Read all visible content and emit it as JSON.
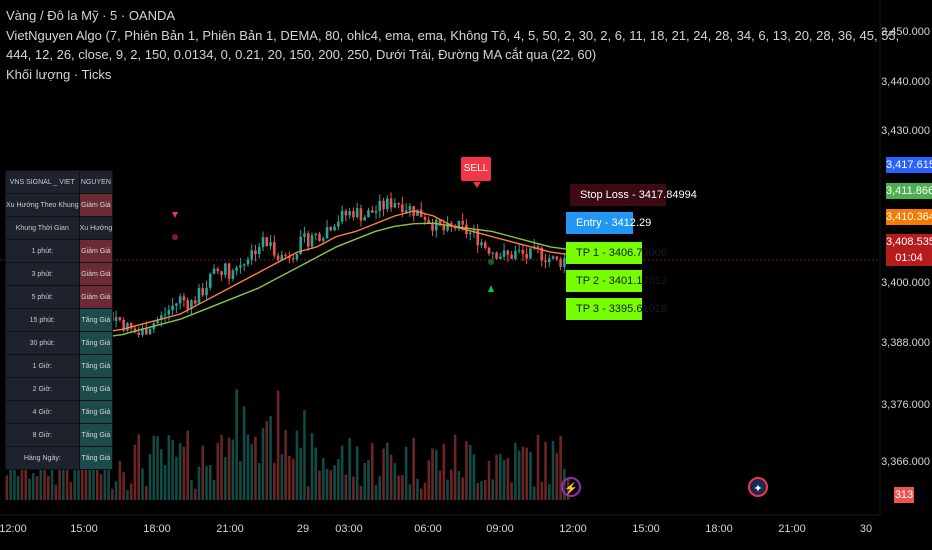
{
  "legend": {
    "line1": "Vàng / Đô la Mỹ · 5 · OANDA",
    "line2": "VietNguyen Algo (7, Phiên Bản 1, Phiên Bản 1, DEMA, 80, ohlc4, ema, ema, Không Tô, 4, 5, 50, 2, 30, 2, 6, 11, 18, 21, 24, 28, 34, 6, 13, 20, 28, 36, 45, 55, 444, 12, 26, close, 9, 2, 150, 0.0134, 0, 0.21, 20, 150, 200, 250, Dưới Trái, Đường MA cắt qua (22, 60)",
    "line3": "Khối lượng · Ticks"
  },
  "price_axis": [
    "3,450.000",
    "3,440.000",
    "3,430.000",
    "3,400.000",
    "3,388.000",
    "3,376.000",
    "3,366.000"
  ],
  "price_badges": {
    "blue": "3,417.615",
    "green": "3,411.866",
    "orange": "3,410.364",
    "red_price": "3,408.535",
    "red_timer": "01:04",
    "volume": "313"
  },
  "time_axis": [
    "12:00",
    "15:00",
    "18:00",
    "21:00",
    "29",
    "03:00",
    "06:00",
    "09:00",
    "12:00",
    "15:00",
    "18:00",
    "21:00",
    "30"
  ],
  "signal_table": {
    "header": [
      "VNS SIGNAL _ VIET",
      "NGUYEN"
    ],
    "rows": [
      {
        "k": "Xu Hướng Theo Khung",
        "v": "Giảm Giá",
        "t": "down"
      },
      {
        "k": "Khung Thời Gian",
        "v": "Xu Hướng",
        "t": "hdr"
      },
      {
        "k": "1 phút:",
        "v": "Giảm Giá",
        "t": "down"
      },
      {
        "k": "3 phút:",
        "v": "Giảm Giá",
        "t": "down"
      },
      {
        "k": "5 phút:",
        "v": "Giảm Giá",
        "t": "down"
      },
      {
        "k": "15 phút:",
        "v": "Tăng Giá",
        "t": "up"
      },
      {
        "k": "30 phút:",
        "v": "Tăng Giá",
        "t": "up"
      },
      {
        "k": "1 Giờ:",
        "v": "Tăng Giá",
        "t": "up"
      },
      {
        "k": "2 Giờ:",
        "v": "Tăng Giá",
        "t": "up"
      },
      {
        "k": "4 Giờ:",
        "v": "Tăng Giá",
        "t": "up"
      },
      {
        "k": "8 Giờ:",
        "v": "Tăng Giá",
        "t": "up"
      },
      {
        "k": "Hàng Ngày:",
        "v": "Tăng Giá",
        "t": "up"
      }
    ]
  },
  "trade_levels": {
    "sell": "SELL",
    "stop_loss": "Stop Loss - 3417.84994",
    "entry": "Entry - 3412.29",
    "tp1": "TP 1 - 3406.73006",
    "tp2": "TP 2 - 3401.17012",
    "tp3": "TP 3 - 3395.61018"
  },
  "chart_data": {
    "type": "candlestick",
    "instrument": "XAU/USD 5m OANDA",
    "ylim": [
      3360,
      3455
    ],
    "x_tick_labels": [
      "12:00",
      "15:00",
      "18:00",
      "21:00",
      "29",
      "03:00",
      "06:00",
      "09:00",
      "12:00",
      "15:00",
      "18:00",
      "21:00",
      "30"
    ],
    "close_path": [
      3392,
      3393,
      3392,
      3394,
      3393,
      3395,
      3394,
      3396,
      3397,
      3396,
      3398,
      3397,
      3395,
      3394,
      3396,
      3397,
      3399,
      3401,
      3400,
      3402,
      3405,
      3407,
      3406,
      3408,
      3410,
      3412,
      3411,
      3409,
      3410,
      3412,
      3413,
      3414,
      3416,
      3417,
      3418,
      3417,
      3418,
      3419,
      3420,
      3419,
      3418,
      3417,
      3415,
      3414,
      3415,
      3414,
      3413,
      3411,
      3410,
      3409,
      3410,
      3409,
      3410,
      3409,
      3408,
      3409
    ],
    "ma_fast": [
      3392,
      3392.5,
      3393,
      3393.5,
      3394,
      3394.5,
      3395,
      3396,
      3397,
      3398,
      3400,
      3402,
      3404,
      3406,
      3408,
      3410,
      3411,
      3413,
      3414,
      3415.5,
      3417,
      3418,
      3417,
      3415,
      3414,
      3413,
      3412,
      3411,
      3410,
      3409.5
    ],
    "ma_slow": [
      3391,
      3391.5,
      3392,
      3392.5,
      3393,
      3393.5,
      3394,
      3395,
      3396,
      3397,
      3398.5,
      3400,
      3401.5,
      3403,
      3405,
      3407,
      3409,
      3411,
      3412.5,
      3414,
      3415,
      3415.5,
      3415.6,
      3415,
      3414.5,
      3414,
      3413,
      3412,
      3411,
      3410.5
    ]
  },
  "colors": {
    "bull": "#26a69a",
    "bear": "#ef5350",
    "ma_fast": "#ff7f3f",
    "ma_slow": "#8bc34a",
    "axis_text": "#d1d4dc",
    "sell_marker": "#f23645"
  }
}
